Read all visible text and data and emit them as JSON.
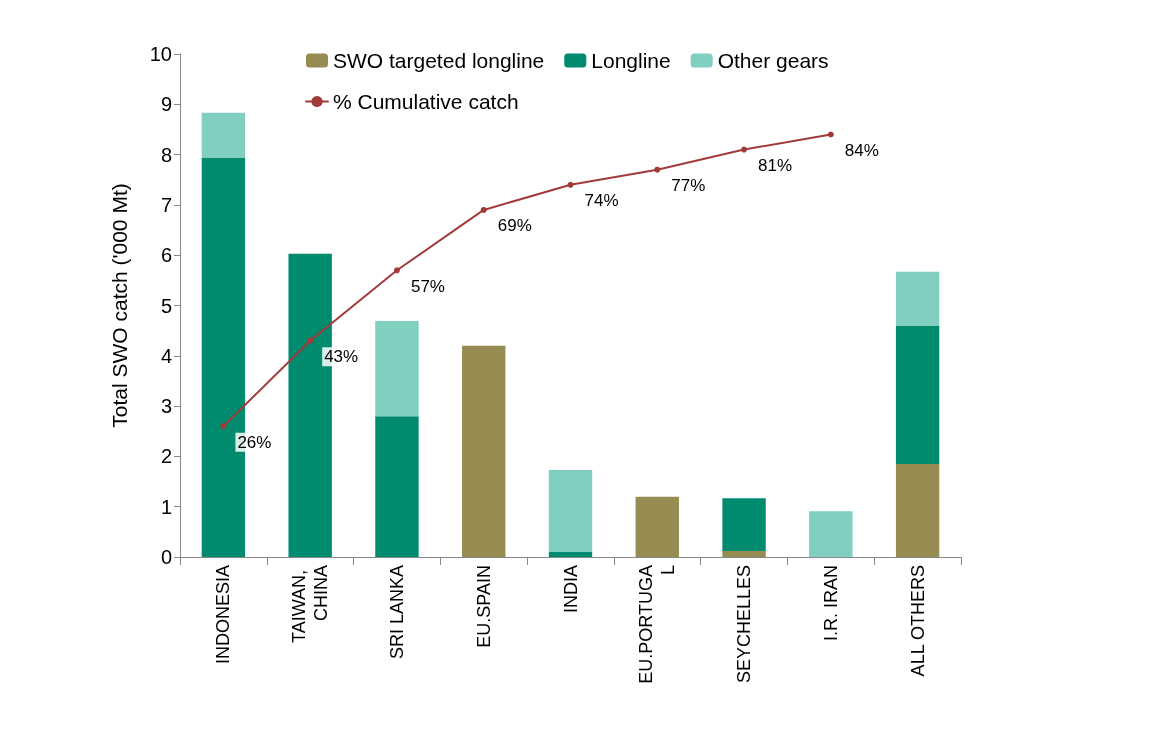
{
  "chart_data": {
    "type": "bar",
    "stacked": true,
    "ylabel": "Total SWO catch ('000 Mt)",
    "categories": [
      "INDONESIA",
      "TAIWAN, CHINA",
      "SRI LANKA",
      "EU.SPAIN",
      "INDIA",
      "EU.PORTUGAL",
      "SEYCHELLES",
      "I.R. IRAN",
      "ALL OTHERS"
    ],
    "series": [
      {
        "name": "SWO targeted longline",
        "color": "#968c52",
        "values": [
          0,
          0,
          0,
          4.2,
          0,
          1.2,
          0.12,
          0,
          1.85
        ]
      },
      {
        "name": "Longline",
        "color": "#008a6e",
        "values": [
          7.93,
          6.03,
          2.8,
          0,
          0.1,
          0,
          1.05,
          0,
          2.74
        ]
      },
      {
        "name": "Other gears",
        "color": "#80cfc0",
        "values": [
          0.9,
          0,
          1.89,
          0,
          1.63,
          0,
          0,
          0.91,
          1.08
        ]
      },
      {
        "name": "% Cumulative catch",
        "type": "line",
        "axis": "y2",
        "color": "#a33a3a",
        "values": [
          26,
          43,
          57,
          69,
          74,
          77,
          81,
          84,
          null
        ],
        "value_labels": [
          "26%",
          "43%",
          "57%",
          "69%",
          "74%",
          "77%",
          "81%",
          "84%",
          null
        ]
      }
    ],
    "ylim": [
      0,
      10
    ],
    "yticks": [
      0,
      1,
      2,
      3,
      4,
      5,
      6,
      7,
      8,
      9,
      10
    ],
    "y2lim": [
      0,
      100
    ],
    "tick_labels": "xy",
    "grid": false,
    "legend": "top",
    "marker": "circle",
    "line_style": "solid"
  }
}
